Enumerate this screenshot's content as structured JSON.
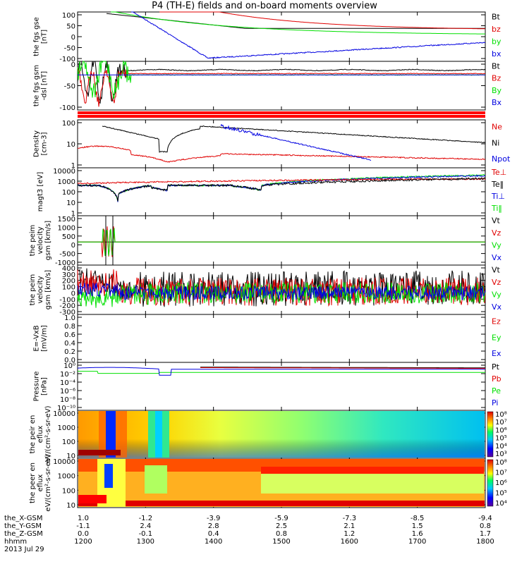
{
  "title": "P4 (TH-E) fields and on-board moments overview",
  "colors": {
    "black": "#000000",
    "red": "#e00000",
    "green": "#00e000",
    "blue": "#0000e0",
    "band": "#ff0000"
  },
  "chart_data": [
    {
      "type": "line",
      "ylabel": "the fgs gse [nT]",
      "ylim": [
        -100,
        100
      ],
      "ticks": [
        "100",
        "50",
        "0",
        "-50",
        "-100"
      ],
      "series": [
        {
          "name": "Bt",
          "color": "black"
        },
        {
          "name": "bz",
          "color": "red"
        },
        {
          "name": "by",
          "color": "green"
        },
        {
          "name": "bx",
          "color": "blue"
        }
      ]
    },
    {
      "type": "line",
      "ylabel": "the fgs gsm -dsl [nT]",
      "ylim": [
        -120,
        40
      ],
      "ticks": [
        "0",
        "-50",
        "-100"
      ],
      "series": [
        {
          "name": "Bt",
          "color": "black"
        },
        {
          "name": "Bz",
          "color": "red"
        },
        {
          "name": "By",
          "color": "green"
        },
        {
          "name": "Bx",
          "color": "blue"
        }
      ]
    },
    {
      "type": "line",
      "ylabel": "Density [cm-3]",
      "log": true,
      "ticks": [
        "100",
        "10",
        "1"
      ],
      "series": [
        {
          "name": "Ne",
          "color": "red"
        },
        {
          "name": "Ni",
          "color": "black"
        },
        {
          "name": "Npot",
          "color": "blue"
        }
      ]
    },
    {
      "type": "line",
      "ylabel": "magt3 [eV]",
      "log": true,
      "ticks": [
        "10000",
        "1000",
        "100",
        "10",
        "1"
      ],
      "series": [
        {
          "name": "Te⊥",
          "color": "red"
        },
        {
          "name": "Te‖",
          "color": "black"
        },
        {
          "name": "Ti⊥",
          "color": "blue"
        },
        {
          "name": "Ti‖",
          "color": "green"
        }
      ]
    },
    {
      "type": "line",
      "ylabel": "the peim velocity gsm [km/s]",
      "ylim": [
        -1500,
        1500
      ],
      "ticks": [
        "1500",
        "1000",
        "500",
        "0",
        "-500",
        "-1000"
      ],
      "series": [
        {
          "name": "Vt",
          "color": "black"
        },
        {
          "name": "Vz",
          "color": "red"
        },
        {
          "name": "Vy",
          "color": "green"
        },
        {
          "name": "Vx",
          "color": "blue"
        }
      ]
    },
    {
      "type": "line",
      "ylabel": "the peim velocity gsm [km/s]",
      "ylim": [
        -300,
        400
      ],
      "ticks": [
        "400",
        "300",
        "200",
        "100",
        "0",
        "-100",
        "-200",
        "-300"
      ],
      "series": [
        {
          "name": "Vt",
          "color": "black"
        },
        {
          "name": "Vz",
          "color": "red"
        },
        {
          "name": "Vy",
          "color": "green"
        },
        {
          "name": "Vx",
          "color": "blue"
        }
      ]
    },
    {
      "type": "line",
      "ylabel": "E=-VxB [mV/m]",
      "ylim": [
        0,
        1
      ],
      "ticks": [
        "1.0",
        "0.8",
        "0.6",
        "0.4",
        "0.2",
        "0.0"
      ],
      "series": [
        {
          "name": "Ez",
          "color": "red"
        },
        {
          "name": "Ey",
          "color": "green"
        },
        {
          "name": "Ex",
          "color": "blue"
        }
      ]
    },
    {
      "type": "line",
      "ylabel": "Pressure [nPa]",
      "log": true,
      "ticks": [
        "10⁰",
        "10⁻²",
        "10⁻⁴",
        "10⁻⁶",
        "10⁻⁸",
        "10⁻¹⁰"
      ],
      "series": [
        {
          "name": "Pt",
          "color": "black"
        },
        {
          "name": "Pb",
          "color": "red"
        },
        {
          "name": "Pe",
          "color": "green"
        },
        {
          "name": "Pi",
          "color": "blue"
        }
      ]
    },
    {
      "type": "heatmap",
      "ylabel": "the peir en eflux eV/(cm²-s-sr-eV)",
      "ticks": [
        "10000",
        "1000",
        "100",
        "10"
      ],
      "colorbar": [
        "10⁸",
        "10⁷",
        "10⁶",
        "10⁵",
        "10⁴",
        "10³"
      ]
    },
    {
      "type": "heatmap",
      "ylabel": "the peer en eflux eV/(cm²-s-sr-eV)",
      "ticks": [
        "10000",
        "1000",
        "100",
        "10"
      ],
      "colorbar": [
        "10⁸",
        "10⁷",
        "10⁶",
        "10⁵",
        "10⁴"
      ]
    }
  ],
  "ephemeris": {
    "labels": [
      "the_X-GSM",
      "the_Y-GSM",
      "the_Z-GSM",
      "hhmm",
      "2013 Jul 29"
    ],
    "x_gsm": [
      "1.0",
      "-1.2",
      "-3.9",
      "-5.9",
      "-7.3",
      "-8.5",
      "-9.4"
    ],
    "y_gsm": [
      "-1.1",
      "2.4",
      "2.8",
      "2.5",
      "2.1",
      "1.5",
      "0.8"
    ],
    "z_gsm": [
      "0.0",
      "-0.1",
      "0.4",
      "0.8",
      "1.2",
      "1.6",
      "1.7"
    ],
    "hhmm": [
      "1200",
      "1300",
      "1400",
      "1500",
      "1600",
      "1700",
      "1800"
    ]
  }
}
